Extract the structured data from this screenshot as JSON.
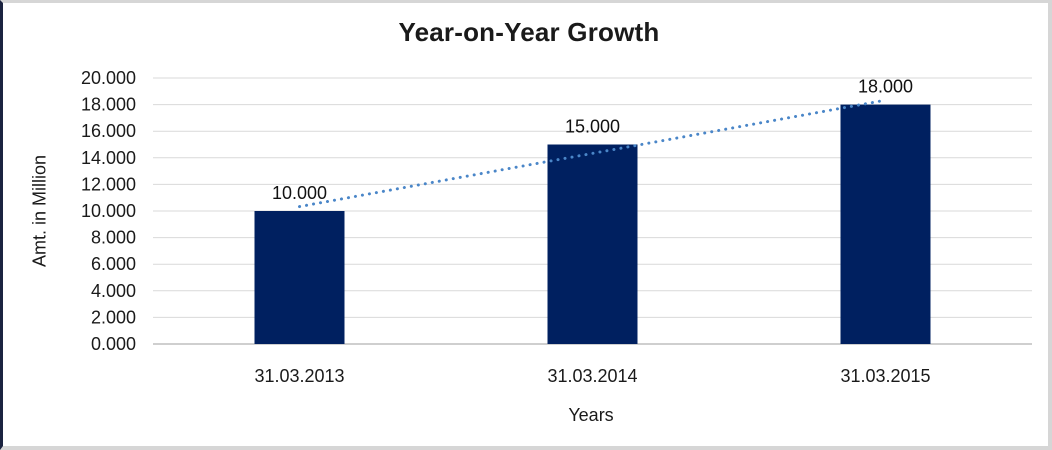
{
  "chart": {
    "title": "Year-on-Year Growth",
    "x_axis_title": "Years",
    "y_axis_title": "Amt. in Million"
  },
  "chart_data": {
    "type": "bar",
    "title": "Year-on-Year Growth",
    "xlabel": "Years",
    "ylabel": "Amt. in Million",
    "categories": [
      "31.03.2013",
      "31.03.2014",
      "31.03.2015"
    ],
    "values": [
      10,
      15,
      18
    ],
    "value_labels": [
      "10.000",
      "15.000",
      "18.000"
    ],
    "ylim": [
      0,
      20
    ],
    "ytick_values": [
      0,
      2,
      4,
      6,
      8,
      10,
      12,
      14,
      16,
      18,
      20
    ],
    "ytick_labels": [
      "0.000",
      "2.000",
      "4.000",
      "6.000",
      "8.000",
      "10.000",
      "12.000",
      "14.000",
      "16.000",
      "18.000",
      "20.000"
    ],
    "grid": true,
    "legend": false,
    "bar_color": "#002060",
    "gridline_color": "#d9d9d9",
    "axis_line_color": "#bfbfbf",
    "trendline": {
      "type": "linear",
      "style": "dotted",
      "color": "#4A86C8"
    }
  }
}
